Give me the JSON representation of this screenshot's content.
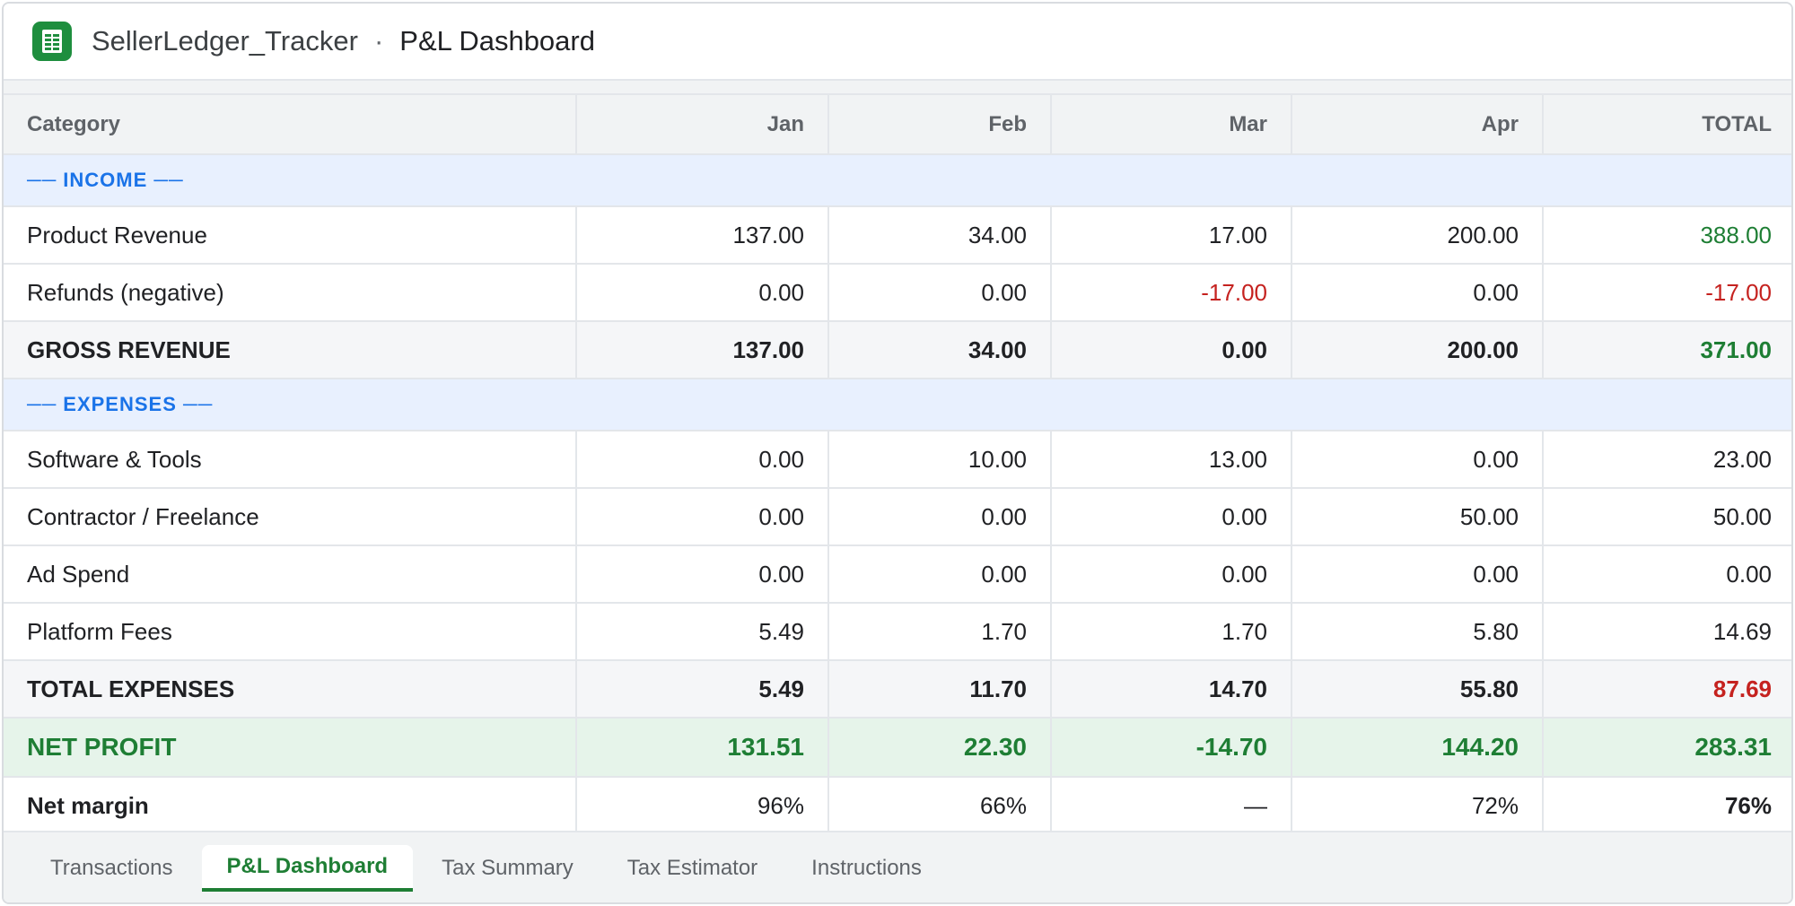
{
  "window": {
    "file_name": "SellerLedger_Tracker",
    "separator": "·",
    "sheet_name": "P&L Dashboard",
    "app_icon": "spreadsheet-icon"
  },
  "table": {
    "headers": [
      "Category",
      "Jan",
      "Feb",
      "Mar",
      "Apr",
      "TOTAL"
    ],
    "income_section": "── INCOME ──",
    "expenses_section": "── EXPENSES ──",
    "rows": {
      "product_revenue": {
        "label": "Product Revenue",
        "values": [
          "137.00",
          "34.00",
          "17.00",
          "200.00",
          "388.00"
        ]
      },
      "refunds": {
        "label": "Refunds (negative)",
        "values": [
          "0.00",
          "0.00",
          "-17.00",
          "0.00",
          "-17.00"
        ]
      },
      "gross_revenue": {
        "label": "GROSS REVENUE",
        "values": [
          "137.00",
          "34.00",
          "0.00",
          "200.00",
          "371.00"
        ]
      },
      "software_tools": {
        "label": "Software & Tools",
        "values": [
          "0.00",
          "10.00",
          "13.00",
          "0.00",
          "23.00"
        ]
      },
      "contractor": {
        "label": "Contractor / Freelance",
        "values": [
          "0.00",
          "0.00",
          "0.00",
          "50.00",
          "50.00"
        ]
      },
      "ad_spend": {
        "label": "Ad Spend",
        "values": [
          "0.00",
          "0.00",
          "0.00",
          "0.00",
          "0.00"
        ]
      },
      "platform_fees": {
        "label": "Platform Fees",
        "values": [
          "5.49",
          "1.70",
          "1.70",
          "5.80",
          "14.69"
        ]
      },
      "total_expenses": {
        "label": "TOTAL EXPENSES",
        "values": [
          "5.49",
          "11.70",
          "14.70",
          "55.80",
          "87.69"
        ]
      },
      "net_profit": {
        "label": "NET PROFIT",
        "values": [
          "131.51",
          "22.30",
          "-14.70",
          "144.20",
          "283.31"
        ]
      },
      "net_margin": {
        "label": "Net margin",
        "values": [
          "96%",
          "66%",
          "—",
          "72%",
          "76%"
        ]
      }
    }
  },
  "tabs": [
    "Transactions",
    "P&L Dashboard",
    "Tax Summary",
    "Tax Estimator",
    "Instructions"
  ],
  "active_tab": "P&L Dashboard",
  "colors": {
    "positive": "#1e7e34",
    "negative": "#c5221f",
    "section": "#1a73e8",
    "net_profit_bg": "#e6f4ea"
  }
}
